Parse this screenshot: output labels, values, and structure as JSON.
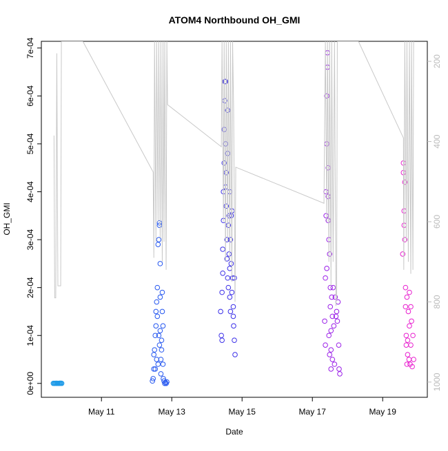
{
  "chart_data": {
    "type": "scatter",
    "title": "ATOM4 Northbound OH_GMI",
    "x_label": "Date",
    "y_label": "OH_GMI",
    "xlim": [
      9.29,
      20.27
    ],
    "xticks": [
      {
        "value": 11,
        "label": "May 11"
      },
      {
        "value": 13,
        "label": "May 13"
      },
      {
        "value": 15,
        "label": "May 15"
      },
      {
        "value": 17,
        "label": "May 17"
      },
      {
        "value": 19,
        "label": "May 19"
      }
    ],
    "ylim": [
      -2.9e-05,
      0.000714
    ],
    "yticks": [
      {
        "value": 0,
        "label": "0e+00"
      },
      {
        "value": 0.0001,
        "label": "1e-04"
      },
      {
        "value": 0.0002,
        "label": "2e-04"
      },
      {
        "value": 0.0003,
        "label": "3e-04"
      },
      {
        "value": 0.0004,
        "label": "4e-04"
      },
      {
        "value": 0.0005,
        "label": "5e-04"
      },
      {
        "value": 0.0006,
        "label": "6e-04"
      },
      {
        "value": 0.0007,
        "label": "7e-04"
      }
    ],
    "y2lim": [
      1038,
      150
    ],
    "y2ticks": [
      200,
      400,
      600,
      800,
      1000
    ],
    "series": [
      {
        "color": "#1f9be8",
        "x": [
          9.63,
          9.65,
          9.67,
          9.69,
          9.71,
          9.73,
          9.75,
          9.77,
          9.79,
          9.81,
          9.83,
          9.85,
          9.87
        ],
        "values": [
          1e-07,
          2e-07,
          0.0,
          1e-07,
          3e-07,
          0.0,
          2e-07,
          1e-07,
          0.0,
          3e-07,
          2e-07,
          4e-07,
          1e-07
        ]
      },
      {
        "color": "#2456f0",
        "x": [
          12.45,
          12.47,
          12.49,
          12.49,
          12.51,
          12.53,
          12.55,
          12.55,
          12.57,
          12.59,
          12.59,
          12.61,
          12.63,
          12.65,
          12.65,
          12.67,
          12.67,
          12.69,
          12.69,
          12.71,
          12.73,
          12.73,
          12.75,
          12.76,
          12.78,
          12.8,
          12.82,
          12.84,
          12.86,
          12.61,
          12.63,
          12.57,
          12.65,
          12.67,
          12.53,
          12.75,
          12.71
        ],
        "values": [
          5e-06,
          1e-05,
          3e-05,
          6e-05,
          7e-05,
          0.0001,
          0.00012,
          0.00015,
          0.00017,
          0.0002,
          0.00014,
          0.00029,
          0.0003,
          0.00033,
          0.000335,
          0.00025,
          0.00011,
          5e-05,
          2e-05,
          7e-05,
          0.00015,
          0.00019,
          4e-05,
          1e-05,
          5e-06,
          0.0,
          2e-06,
          0.0,
          3e-06,
          4e-05,
          0.0001,
          5e-05,
          8e-05,
          0.00018,
          3e-05,
          0.00012,
          9e-05
        ]
      },
      {
        "color": "#3a2ee8",
        "x": [
          14.39,
          14.41,
          14.43,
          14.43,
          14.45,
          14.45,
          14.47,
          14.47,
          14.49,
          14.49,
          14.51,
          14.51,
          14.53,
          14.53,
          14.55,
          14.55,
          14.57,
          14.57,
          14.59,
          14.59,
          14.61,
          14.61,
          14.63,
          14.63,
          14.65,
          14.65,
          14.67,
          14.69,
          14.69,
          14.71,
          14.71,
          14.73,
          14.75,
          14.75,
          14.76,
          14.78,
          14.78,
          14.8,
          14.59,
          14.53,
          14.65,
          14.67
        ],
        "values": [
          0.00015,
          0.0001,
          9e-05,
          0.00019,
          0.00023,
          0.00028,
          0.00034,
          0.0004,
          0.00046,
          0.00053,
          0.00059,
          0.00063,
          0.00063,
          0.0005,
          0.00044,
          0.00037,
          0.0003,
          0.00026,
          0.00022,
          0.00048,
          0.00033,
          0.0002,
          0.00027,
          0.00035,
          0.00024,
          0.00018,
          0.0003,
          0.00025,
          0.00035,
          0.00019,
          0.00036,
          0.00022,
          0.00014,
          0.00016,
          0.00012,
          0.00022,
          9e-05,
          6e-05,
          0.00057,
          0.00041,
          0.0004,
          0.00015
        ]
      },
      {
        "color": "#9a1ee8",
        "x": [
          17.35,
          17.37,
          17.37,
          17.39,
          17.39,
          17.41,
          17.41,
          17.43,
          17.43,
          17.45,
          17.45,
          17.47,
          17.47,
          17.49,
          17.49,
          17.51,
          17.51,
          17.53,
          17.53,
          17.55,
          17.57,
          17.57,
          17.59,
          17.61,
          17.63,
          17.65,
          17.67,
          17.69,
          17.71,
          17.73,
          17.75,
          17.76,
          17.78,
          17.41,
          17.45,
          17.53
        ],
        "values": [
          0.00013,
          0.00022,
          8e-05,
          0.00035,
          0.0004,
          0.0005,
          0.0006,
          0.00069,
          0.00066,
          0.00045,
          0.00039,
          0.0003,
          0.0001,
          6e-05,
          0.00027,
          0.0002,
          0.00016,
          7e-05,
          3e-05,
          0.00018,
          0.00014,
          5e-05,
          0.0002,
          0.00012,
          4e-05,
          0.00018,
          0.00014,
          0.00015,
          0.00013,
          0.00017,
          8e-05,
          3e-05,
          2e-05,
          0.00024,
          0.00034,
          0.00011
        ]
      },
      {
        "color": "#e81ecf",
        "x": [
          19.57,
          19.59,
          19.59,
          19.61,
          19.63,
          19.63,
          19.65,
          19.65,
          19.67,
          19.67,
          19.69,
          19.71,
          19.71,
          19.73,
          19.75,
          19.76,
          19.78,
          19.8,
          19.82,
          19.84,
          19.86,
          19.88,
          19.61,
          19.69,
          19.76,
          19.8
        ],
        "values": [
          0.00027,
          0.00044,
          0.00046,
          0.00036,
          0.00042,
          0.0003,
          0.0002,
          0.00016,
          0.0001,
          8e-05,
          0.00018,
          6e-05,
          9e-05,
          0.00015,
          5e-05,
          0.00012,
          4e-05,
          8e-05,
          0.00013,
          3.5e-05,
          0.0001,
          5e-05,
          0.00033,
          4e-05,
          0.00019,
          0.00016
        ]
      },
      {
        "type": "line",
        "axis": "y2",
        "color": "#c8c8c8",
        "x": [
          9.65,
          9.67,
          9.7,
          9.73,
          9.76,
          9.84,
          9.86,
          9.88,
          10.47,
          12.47,
          12.49,
          12.51,
          12.55,
          12.57,
          12.61,
          12.63,
          12.67,
          12.69,
          12.73,
          12.75,
          12.78,
          12.8,
          12.84,
          12.86,
          12.88,
          14.41,
          14.43,
          14.47,
          14.49,
          14.53,
          14.55,
          14.59,
          14.61,
          14.65,
          14.67,
          14.71,
          14.73,
          14.76,
          14.8,
          14.82,
          17.33,
          17.37,
          17.41,
          17.43,
          17.47,
          17.49,
          17.53,
          17.55,
          17.59,
          17.63,
          17.67,
          17.69,
          17.71,
          18.31,
          19.59,
          19.6,
          19.63,
          19.67,
          19.69,
          19.73,
          19.76,
          19.8,
          19.82,
          19.86,
          19.88
        ],
        "values": [
          385,
          790,
          790,
          180,
          760,
          760,
          150,
          150,
          150,
          476,
          690,
          150,
          650,
          150,
          600,
          150,
          640,
          150,
          700,
          150,
          650,
          150,
          720,
          150,
          308,
          413,
          150,
          600,
          150,
          700,
          150,
          650,
          150,
          700,
          150,
          750,
          150,
          320,
          800,
          464,
          554,
          150,
          600,
          150,
          700,
          150,
          760,
          150,
          700,
          150,
          810,
          780,
          150,
          150,
          391,
          720,
          150,
          650,
          150,
          700,
          150,
          730,
          150,
          720,
          150
        ]
      }
    ]
  }
}
